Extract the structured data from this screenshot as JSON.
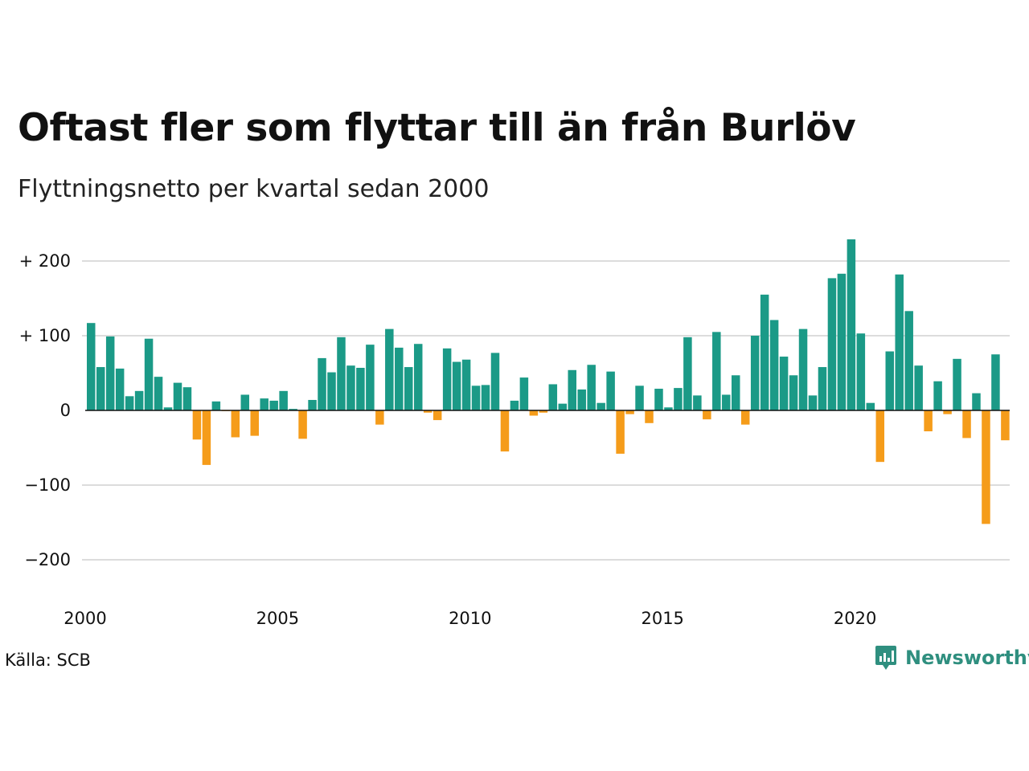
{
  "header": {
    "title": "Oftast fler som flyttar till än från Burlöv",
    "subtitle": "Flyttningsnetto per kvartal sedan 2000"
  },
  "footer": {
    "source": "Källa: SCB",
    "brand": "Newsworthy",
    "brand_icon": "bar-chart-speech-bubble-icon"
  },
  "colors": {
    "positive": "#1b9a87",
    "negative": "#f59c1a",
    "grid": "#dcdcdc",
    "zero_line": "#111111",
    "brand": "#2f8f7f"
  },
  "chart_data": {
    "type": "bar",
    "title": "Oftast fler som flyttar till än från Burlöv",
    "subtitle": "Flyttningsnetto per kvartal sedan 2000",
    "x_start_year": 2000,
    "periods_per_year": 4,
    "x_tick_labels": [
      "2000",
      "2005",
      "2010",
      "2015",
      "2020"
    ],
    "y_tick_values": [
      200,
      100,
      0,
      -100,
      -200
    ],
    "y_tick_labels": [
      "+ 200",
      "+ 100",
      "0",
      "−100",
      "−200"
    ],
    "ylim": [
      -235,
      235
    ],
    "grid": true,
    "legend": "none",
    "values": [
      117,
      58,
      99,
      56,
      19,
      26,
      96,
      45,
      4,
      37,
      31,
      -39,
      -73,
      12,
      -1,
      -36,
      21,
      -34,
      16,
      13,
      26,
      2,
      -38,
      14,
      70,
      51,
      98,
      60,
      57,
      88,
      -19,
      109,
      84,
      58,
      89,
      -3,
      -13,
      83,
      65,
      68,
      33,
      34,
      77,
      -55,
      13,
      44,
      -7,
      -3,
      35,
      9,
      54,
      28,
      61,
      10,
      52,
      -58,
      -5,
      33,
      -17,
      29,
      4,
      30,
      98,
      20,
      -12,
      105,
      21,
      47,
      -19,
      100,
      155,
      121,
      72,
      47,
      109,
      20,
      58,
      177,
      183,
      229,
      103,
      10,
      -69,
      79,
      182,
      133,
      60,
      -28,
      39,
      -5,
      69,
      -37,
      23,
      -152,
      75,
      -40
    ]
  }
}
